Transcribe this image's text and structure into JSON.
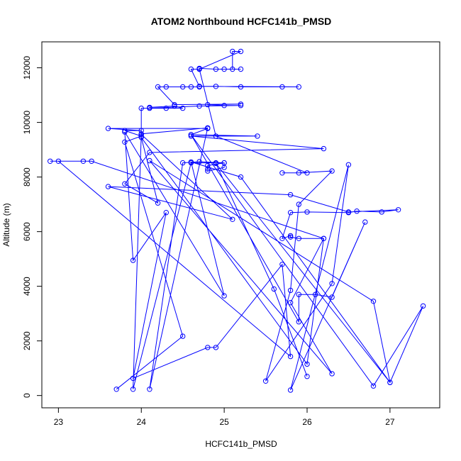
{
  "chart_data": {
    "type": "line",
    "title": "ATOM2 Northbound HCFC141b_PMSD",
    "xlabel": "HCFC141b_PMSD",
    "ylabel": "Altitude (m)",
    "xlim": [
      22.8,
      27.6
    ],
    "ylim": [
      -450,
      12950
    ],
    "xticks": [
      23,
      24,
      25,
      26,
      27
    ],
    "yticks": [
      0,
      2000,
      4000,
      6000,
      8000,
      10000,
      12000
    ],
    "marker": "open-circle",
    "line_color": "#0000ff",
    "grid": false,
    "legend": "none",
    "series": [
      {
        "points": [
          [
            23.7,
            230
          ],
          [
            24.5,
            2170
          ],
          [
            23.8,
            9280
          ],
          [
            24.0,
            9500
          ],
          [
            23.8,
            9700
          ],
          [
            24.0,
            9700
          ],
          [
            23.6,
            9780
          ],
          [
            24.8,
            9780
          ],
          [
            24.6,
            9550
          ],
          [
            25.4,
            9500
          ],
          [
            24.6,
            9500
          ],
          [
            26.2,
            9040
          ],
          [
            24.1,
            8900
          ],
          [
            23.8,
            7750
          ],
          [
            24.2,
            7050
          ],
          [
            24.0,
            9450
          ],
          [
            26.0,
            1150
          ],
          [
            26.2,
            5750
          ],
          [
            25.9,
            5750
          ],
          [
            25.8,
            5800
          ],
          [
            25.8,
            5850
          ],
          [
            25.7,
            5750
          ],
          [
            25.8,
            6700
          ],
          [
            26.0,
            6720
          ],
          [
            26.5,
            6700
          ],
          [
            26.6,
            6750
          ],
          [
            26.9,
            6720
          ],
          [
            27.1,
            6800
          ],
          [
            26.5,
            6720
          ],
          [
            25.8,
            7350
          ],
          [
            23.6,
            7650
          ],
          [
            25.1,
            6450
          ],
          [
            24.0,
            9560
          ],
          [
            23.9,
            230
          ],
          [
            24.6,
            8520
          ],
          [
            24.9,
            8520
          ],
          [
            25.0,
            8520
          ],
          [
            24.8,
            8420
          ],
          [
            24.8,
            8300
          ],
          [
            24.8,
            8220
          ],
          [
            25.0,
            8350
          ],
          [
            25.0,
            8520
          ],
          [
            24.7,
            8560
          ],
          [
            24.5,
            8520
          ],
          [
            24.1,
            230
          ],
          [
            24.8,
            9800
          ],
          [
            24.0,
            9580
          ],
          [
            24.0,
            10520
          ],
          [
            24.3,
            10520
          ],
          [
            24.5,
            10520
          ],
          [
            24.4,
            10600
          ],
          [
            24.1,
            10550
          ],
          [
            24.1,
            10520
          ],
          [
            24.7,
            10600
          ],
          [
            25.2,
            10620
          ],
          [
            25.0,
            10620
          ],
          [
            24.8,
            10650
          ],
          [
            25.2,
            10670
          ],
          [
            24.4,
            10650
          ],
          [
            24.2,
            11300
          ],
          [
            24.3,
            11300
          ],
          [
            24.5,
            11300
          ],
          [
            24.6,
            11300
          ],
          [
            24.7,
            11300
          ],
          [
            24.7,
            11320
          ],
          [
            24.9,
            11320
          ],
          [
            25.2,
            11300
          ],
          [
            25.7,
            11300
          ],
          [
            25.9,
            11300
          ],
          [
            24.7,
            11320
          ],
          [
            24.6,
            11950
          ],
          [
            24.7,
            11950
          ],
          [
            24.7,
            11980
          ],
          [
            24.9,
            11950
          ],
          [
            25.0,
            11950
          ],
          [
            25.2,
            11950
          ],
          [
            25.1,
            11950
          ],
          [
            25.1,
            12600
          ],
          [
            25.2,
            12600
          ],
          [
            24.7,
            11950
          ],
          [
            24.9,
            9500
          ],
          [
            26.0,
            8150
          ],
          [
            25.7,
            8150
          ],
          [
            25.9,
            8150
          ],
          [
            26.3,
            8220
          ],
          [
            25.9,
            7000
          ],
          [
            25.8,
            3850
          ],
          [
            25.5,
            530
          ],
          [
            26.3,
            4100
          ],
          [
            26.5,
            8450
          ],
          [
            25.8,
            200
          ],
          [
            26.7,
            6350
          ],
          [
            26.3,
            3600
          ],
          [
            26.1,
            3700
          ],
          [
            25.9,
            3700
          ],
          [
            25.9,
            2700
          ],
          [
            24.6,
            9550
          ],
          [
            26.8,
            350
          ],
          [
            27.4,
            3280
          ],
          [
            27.0,
            480
          ],
          [
            25.2,
            8000
          ],
          [
            24.6,
            8550
          ],
          [
            25.0,
            3650
          ],
          [
            23.8,
            9650
          ],
          [
            23.9,
            4950
          ],
          [
            24.3,
            6700
          ],
          [
            23.9,
            630
          ],
          [
            24.8,
            1760
          ],
          [
            24.9,
            1760
          ],
          [
            25.7,
            4800
          ],
          [
            25.8,
            1430
          ],
          [
            23.0,
            8580
          ],
          [
            22.9,
            8580
          ],
          [
            23.3,
            8580
          ],
          [
            23.4,
            8580
          ],
          [
            26.2,
            5750
          ],
          [
            25.8,
            3400
          ],
          [
            26.3,
            800
          ],
          [
            24.1,
            8600
          ],
          [
            26.8,
            3450
          ],
          [
            27.0,
            480
          ],
          [
            24.9,
            8500
          ],
          [
            25.6,
            3900
          ],
          [
            26.0,
            700
          ]
        ]
      }
    ]
  }
}
